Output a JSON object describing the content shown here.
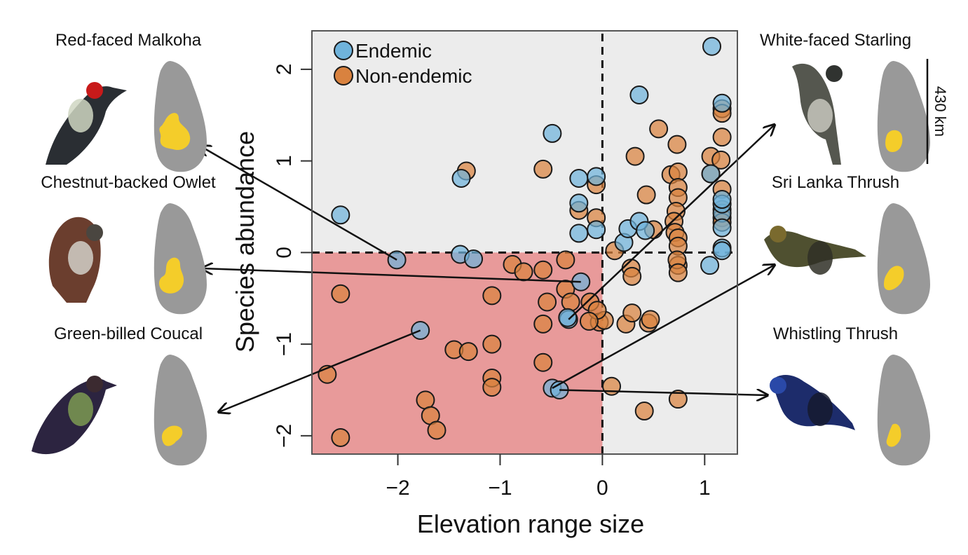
{
  "chart_data": {
    "type": "scatter",
    "title": "",
    "xlabel": "Elevation range size",
    "ylabel": "Species abundance",
    "xlim": [
      -2.84,
      1.32
    ],
    "ylim": [
      -2.2,
      2.42
    ],
    "xticks": [
      -2,
      -1,
      0,
      1
    ],
    "yticks": [
      -2,
      -1,
      0,
      1,
      2
    ],
    "xtick_labels": [
      "−2",
      "−1",
      "0",
      "1"
    ],
    "ytick_labels": [
      "−2",
      "−1",
      "0",
      "1",
      "2"
    ],
    "grid": false,
    "reference_lines": {
      "x": 0,
      "y": 0,
      "style": "dashed"
    },
    "highlight_quadrant": {
      "x_range": [
        -2.84,
        0
      ],
      "y_range": [
        -2.2,
        0
      ],
      "color": "#e89a9a"
    },
    "background_color": "#ececec",
    "legend": {
      "placement": "top-left",
      "entries": [
        {
          "label": "Endemic",
          "color": "#6fb3db"
        },
        {
          "label": "Non-endemic",
          "color": "#d9823f"
        }
      ]
    },
    "series": [
      {
        "name": "Endemic",
        "color": "#6fb3db",
        "points": [
          [
            1.07,
            2.25
          ],
          [
            0.36,
            1.72
          ],
          [
            -0.49,
            1.3
          ],
          [
            -1.38,
            0.81
          ],
          [
            -0.23,
            0.81
          ],
          [
            -0.06,
            0.83
          ],
          [
            -0.23,
            0.54
          ],
          [
            -0.23,
            0.21
          ],
          [
            -0.06,
            0.25
          ],
          [
            -2.56,
            0.41
          ],
          [
            -2.01,
            -0.08
          ],
          [
            -1.39,
            -0.02
          ],
          [
            -1.26,
            -0.07
          ],
          [
            -0.21,
            -0.32
          ],
          [
            -0.33,
            -0.73
          ],
          [
            -0.34,
            -0.71
          ],
          [
            -1.78,
            -0.85
          ],
          [
            -0.49,
            -1.48
          ],
          [
            -0.42,
            -1.5
          ],
          [
            0.21,
            0.11
          ],
          [
            0.25,
            0.26
          ],
          [
            0.36,
            0.34
          ],
          [
            0.42,
            0.24
          ],
          [
            1.05,
            -0.14
          ],
          [
            1.17,
            0.43
          ],
          [
            1.17,
            0.53
          ],
          [
            1.17,
            0.27
          ],
          [
            1.17,
            0.05
          ],
          [
            1.17,
            0.02
          ],
          [
            1.17,
            1.63
          ],
          [
            1.06,
            0.86
          ],
          [
            1.17,
            0.58
          ]
        ]
      },
      {
        "name": "Non-endemic",
        "color": "#d9823f",
        "points": [
          [
            -1.33,
            0.89
          ],
          [
            -0.58,
            0.91
          ],
          [
            -0.06,
            0.74
          ],
          [
            -0.23,
            0.46
          ],
          [
            -0.06,
            0.38
          ],
          [
            0.55,
            1.35
          ],
          [
            0.73,
            1.18
          ],
          [
            0.32,
            1.05
          ],
          [
            0.43,
            0.63
          ],
          [
            1.17,
            1.57
          ],
          [
            1.17,
            1.26
          ],
          [
            1.06,
            1.05
          ],
          [
            1.16,
            1.01
          ],
          [
            1.17,
            0.69
          ],
          [
            1.17,
            0.47
          ],
          [
            1.17,
            1.52
          ],
          [
            1.06,
            0.86
          ],
          [
            0.67,
            0.85
          ],
          [
            0.74,
            0.88
          ],
          [
            0.74,
            0.71
          ],
          [
            0.74,
            0.6
          ],
          [
            0.72,
            0.45
          ],
          [
            0.7,
            0.34
          ],
          [
            0.71,
            0.22
          ],
          [
            0.74,
            0.16
          ],
          [
            0.74,
            0.07
          ],
          [
            0.5,
            0.25
          ],
          [
            1.17,
            0.38
          ],
          [
            1.17,
            0.33
          ],
          [
            0.12,
            0.02
          ],
          [
            0.28,
            -0.17
          ],
          [
            0.29,
            -0.26
          ],
          [
            0.74,
            -0.14
          ],
          [
            0.73,
            -0.08
          ],
          [
            0.74,
            -0.22
          ],
          [
            -0.03,
            -0.76
          ],
          [
            0.02,
            -0.74
          ],
          [
            0.23,
            -0.78
          ],
          [
            0.29,
            -0.66
          ],
          [
            0.45,
            -0.77
          ],
          [
            0.47,
            -0.73
          ],
          [
            0.09,
            -1.46
          ],
          [
            0.41,
            -1.73
          ],
          [
            0.74,
            -1.6
          ],
          [
            -2.56,
            -0.45
          ],
          [
            -2.69,
            -1.33
          ],
          [
            -2.56,
            -2.02
          ],
          [
            -0.88,
            -0.13
          ],
          [
            -0.77,
            -0.21
          ],
          [
            -1.08,
            -0.47
          ],
          [
            -1.08,
            -1.0
          ],
          [
            -0.58,
            -0.19
          ],
          [
            -0.36,
            -0.08
          ],
          [
            -0.36,
            -0.4
          ],
          [
            -0.54,
            -0.54
          ],
          [
            -0.58,
            -0.78
          ],
          [
            -0.31,
            -0.54
          ],
          [
            -0.12,
            -0.54
          ],
          [
            -0.05,
            -0.63
          ],
          [
            -0.13,
            -0.75
          ],
          [
            -1.45,
            -1.06
          ],
          [
            -1.31,
            -1.08
          ],
          [
            -0.58,
            -1.2
          ],
          [
            -1.08,
            -1.37
          ],
          [
            -1.08,
            -1.47
          ],
          [
            -1.73,
            -1.61
          ],
          [
            -1.68,
            -1.78
          ],
          [
            -1.62,
            -1.94
          ]
        ]
      }
    ],
    "annotations": [
      {
        "species": "Red-faced Malkoha",
        "point": [
          -2.01,
          -0.08
        ],
        "side": "left",
        "row": 0
      },
      {
        "species": "Chestnut-backed Owlet",
        "point": [
          -0.21,
          -0.32
        ],
        "side": "left",
        "row": 1
      },
      {
        "species": "Green-billed Coucal",
        "point": [
          -1.78,
          -0.85
        ],
        "side": "left",
        "row": 2
      },
      {
        "species": "White-faced Starling",
        "point": [
          -0.33,
          -0.73
        ],
        "side": "right",
        "row": 0
      },
      {
        "species": "Sri Lanka Thrush",
        "point": [
          -0.49,
          -1.48
        ],
        "side": "right",
        "row": 1
      },
      {
        "species": "Whistling Thrush",
        "point": [
          -0.42,
          -1.5
        ],
        "side": "right",
        "row": 2
      }
    ]
  },
  "species_panels": {
    "left": [
      {
        "name": "Red-faced Malkoha",
        "bird_colors": [
          "#2a2e33",
          "#c81a1a",
          "#cfd6c2"
        ],
        "range_color": "#f4cd2a"
      },
      {
        "name": "Chestnut-backed Owlet",
        "bird_colors": [
          "#6b3e2e",
          "#4a4640",
          "#d2d0c8"
        ],
        "range_color": "#f4cd2a"
      },
      {
        "name": "Green-billed Coucal",
        "bird_colors": [
          "#2c2440",
          "#3b2a30",
          "#7c9a52"
        ],
        "range_color": "#f4cd2a"
      }
    ],
    "right": [
      {
        "name": "White-faced Starling",
        "bird_colors": [
          "#55574f",
          "#303330",
          "#c8c7bd"
        ],
        "range_color": "#f4cd2a"
      },
      {
        "name": "Sri Lanka Thrush",
        "bird_colors": [
          "#4f5030",
          "#7a6a2e",
          "#2f2f26"
        ],
        "range_color": "#f4cd2a"
      },
      {
        "name": "Whistling Thrush",
        "bird_colors": [
          "#1d2c6b",
          "#2a49a8",
          "#151a2e"
        ],
        "range_color": "#f4cd2a"
      }
    ],
    "map_color": "#999999",
    "scale_bar_label": "430 km"
  }
}
